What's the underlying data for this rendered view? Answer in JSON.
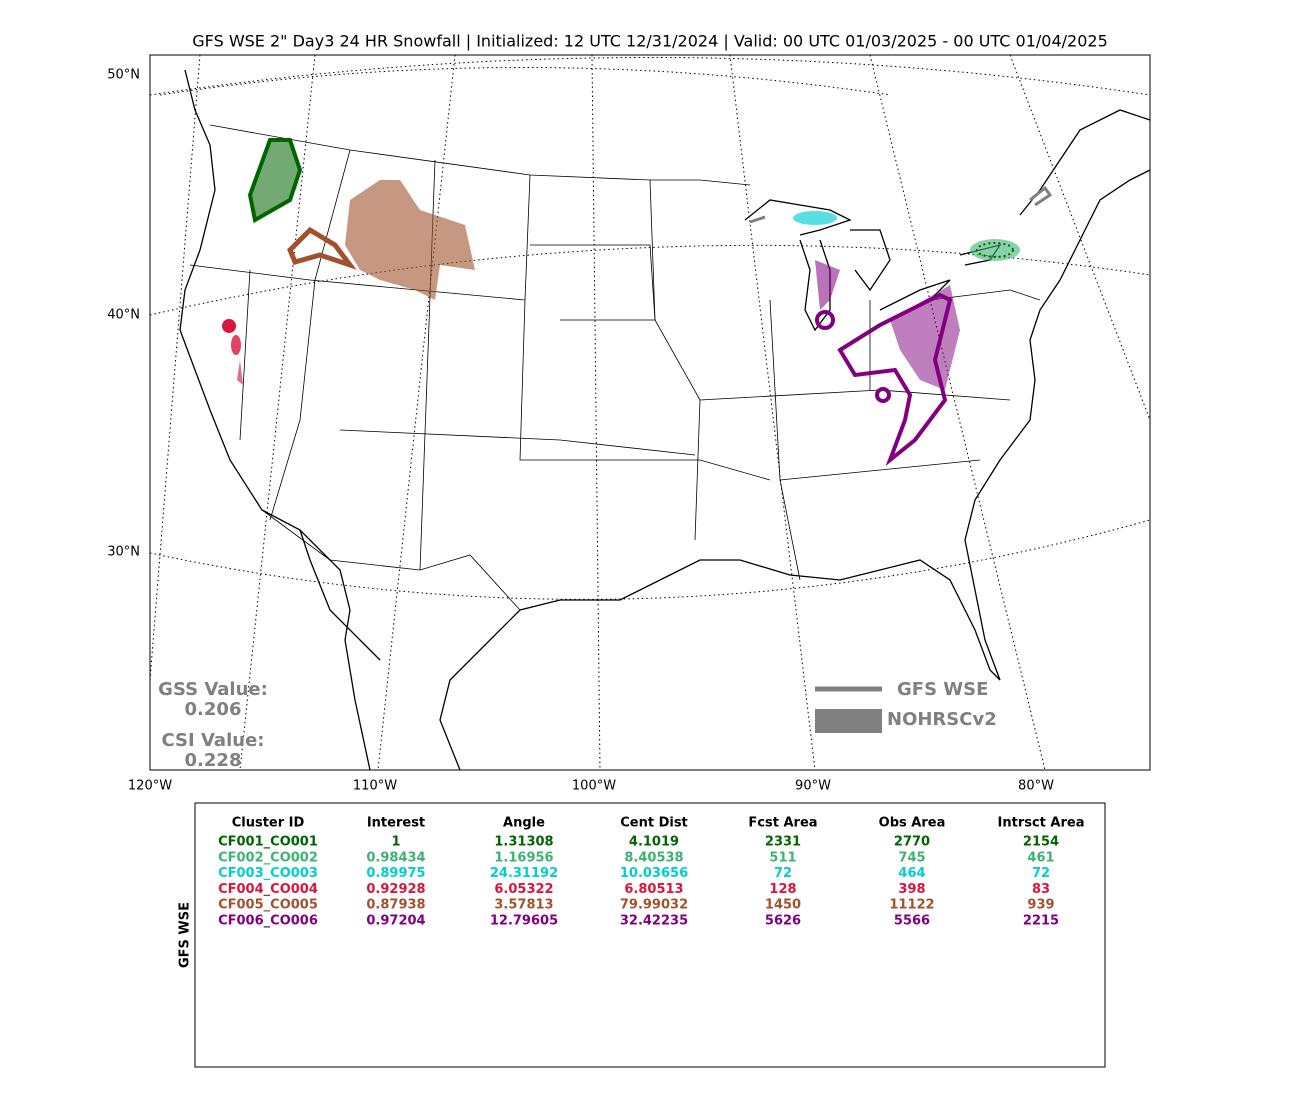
{
  "title": "GFS WSE 2\" Day3 24 HR Snowfall | Initialized: 12 UTC 12/31/2024 | Valid: 00 UTC 01/03/2025 - 00 UTC 01/04/2025",
  "map": {
    "lat_labels": [
      "50°N",
      "40°N",
      "30°N"
    ],
    "lon_labels": [
      "120°W",
      "110°W",
      "100°W",
      "90°W",
      "80°W"
    ],
    "stats": [
      {
        "label": "GSS Value:",
        "value": "0.206"
      },
      {
        "label": "CSI Value:",
        "value": "0.228"
      }
    ],
    "legend": [
      {
        "label": "GFS WSE",
        "color": "#808080"
      },
      {
        "label": "NOHRSCv2",
        "color": "#808080"
      }
    ]
  },
  "table": {
    "side_label": "GFS WSE",
    "columns": [
      "Cluster ID",
      "Interest",
      "Angle",
      "Cent Dist",
      "Fcst Area",
      "Obs Area",
      "Intrsct Area"
    ],
    "rows": [
      {
        "color": "#006400",
        "cells": [
          "CF001_CO001",
          1,
          1.31308,
          4.1019,
          2331,
          2770,
          2154
        ]
      },
      {
        "color": "#3cb371",
        "cells": [
          "CF002_CO002",
          0.98434,
          1.16956,
          8.40538,
          511,
          745,
          461
        ]
      },
      {
        "color": "#00ced1",
        "cells": [
          "CF003_CO003",
          0.89975,
          24.31192,
          10.03656,
          72,
          464,
          72
        ]
      },
      {
        "color": "#dc143c",
        "cells": [
          "CF004_CO004",
          0.92928,
          6.05322,
          6.80513,
          128,
          398,
          83
        ]
      },
      {
        "color": "#a0522d",
        "cells": [
          "CF005_CO005",
          0.87938,
          3.57813,
          79.99032,
          1450,
          11122,
          939
        ]
      },
      {
        "color": "#800080",
        "cells": [
          "CF006_CO006",
          0.97204,
          12.79605,
          32.42235,
          5626,
          5566,
          2215
        ]
      }
    ]
  }
}
